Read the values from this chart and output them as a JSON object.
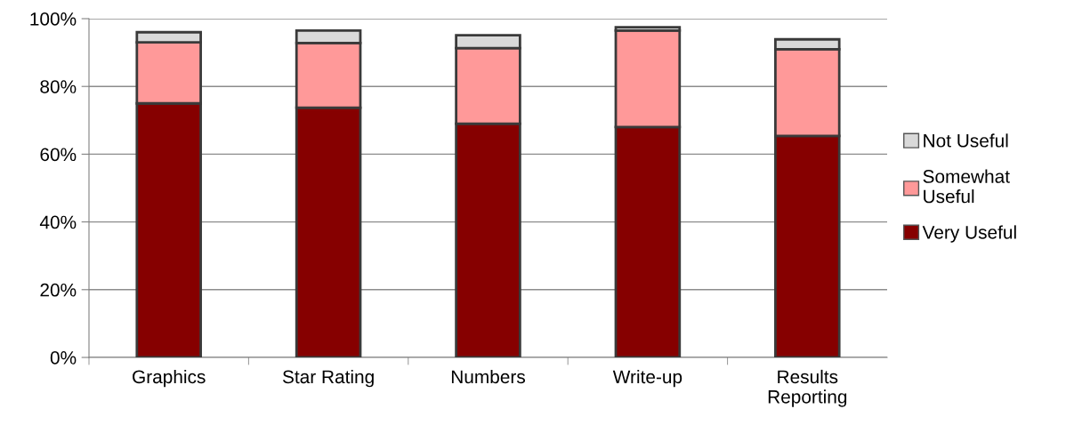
{
  "chart_data": {
    "type": "bar",
    "stacked": true,
    "categories": [
      "Graphics",
      "Star Rating",
      "Numbers",
      "Write-up",
      "Results Reporting"
    ],
    "series": [
      {
        "name": "Very Useful",
        "color": "#860000",
        "values": [
          75,
          73.7,
          69,
          68,
          65.4
        ]
      },
      {
        "name": "Somewhat Useful",
        "color": "#ff9999",
        "values": [
          18,
          19.1,
          22.3,
          28.5,
          25.6
        ]
      },
      {
        "name": "Not Useful",
        "color": "#d9d9d9",
        "values": [
          3,
          3.7,
          3.8,
          1,
          2.9
        ]
      }
    ],
    "ylim": [
      0,
      100
    ],
    "yticks": [
      {
        "value": 0,
        "label": "0%"
      },
      {
        "value": 20,
        "label": "20%"
      },
      {
        "value": 40,
        "label": "40%"
      },
      {
        "value": 60,
        "label": "60%"
      },
      {
        "value": 80,
        "label": "80%"
      },
      {
        "value": 100,
        "label": "100%"
      }
    ],
    "grid": "y",
    "legend": "right"
  }
}
